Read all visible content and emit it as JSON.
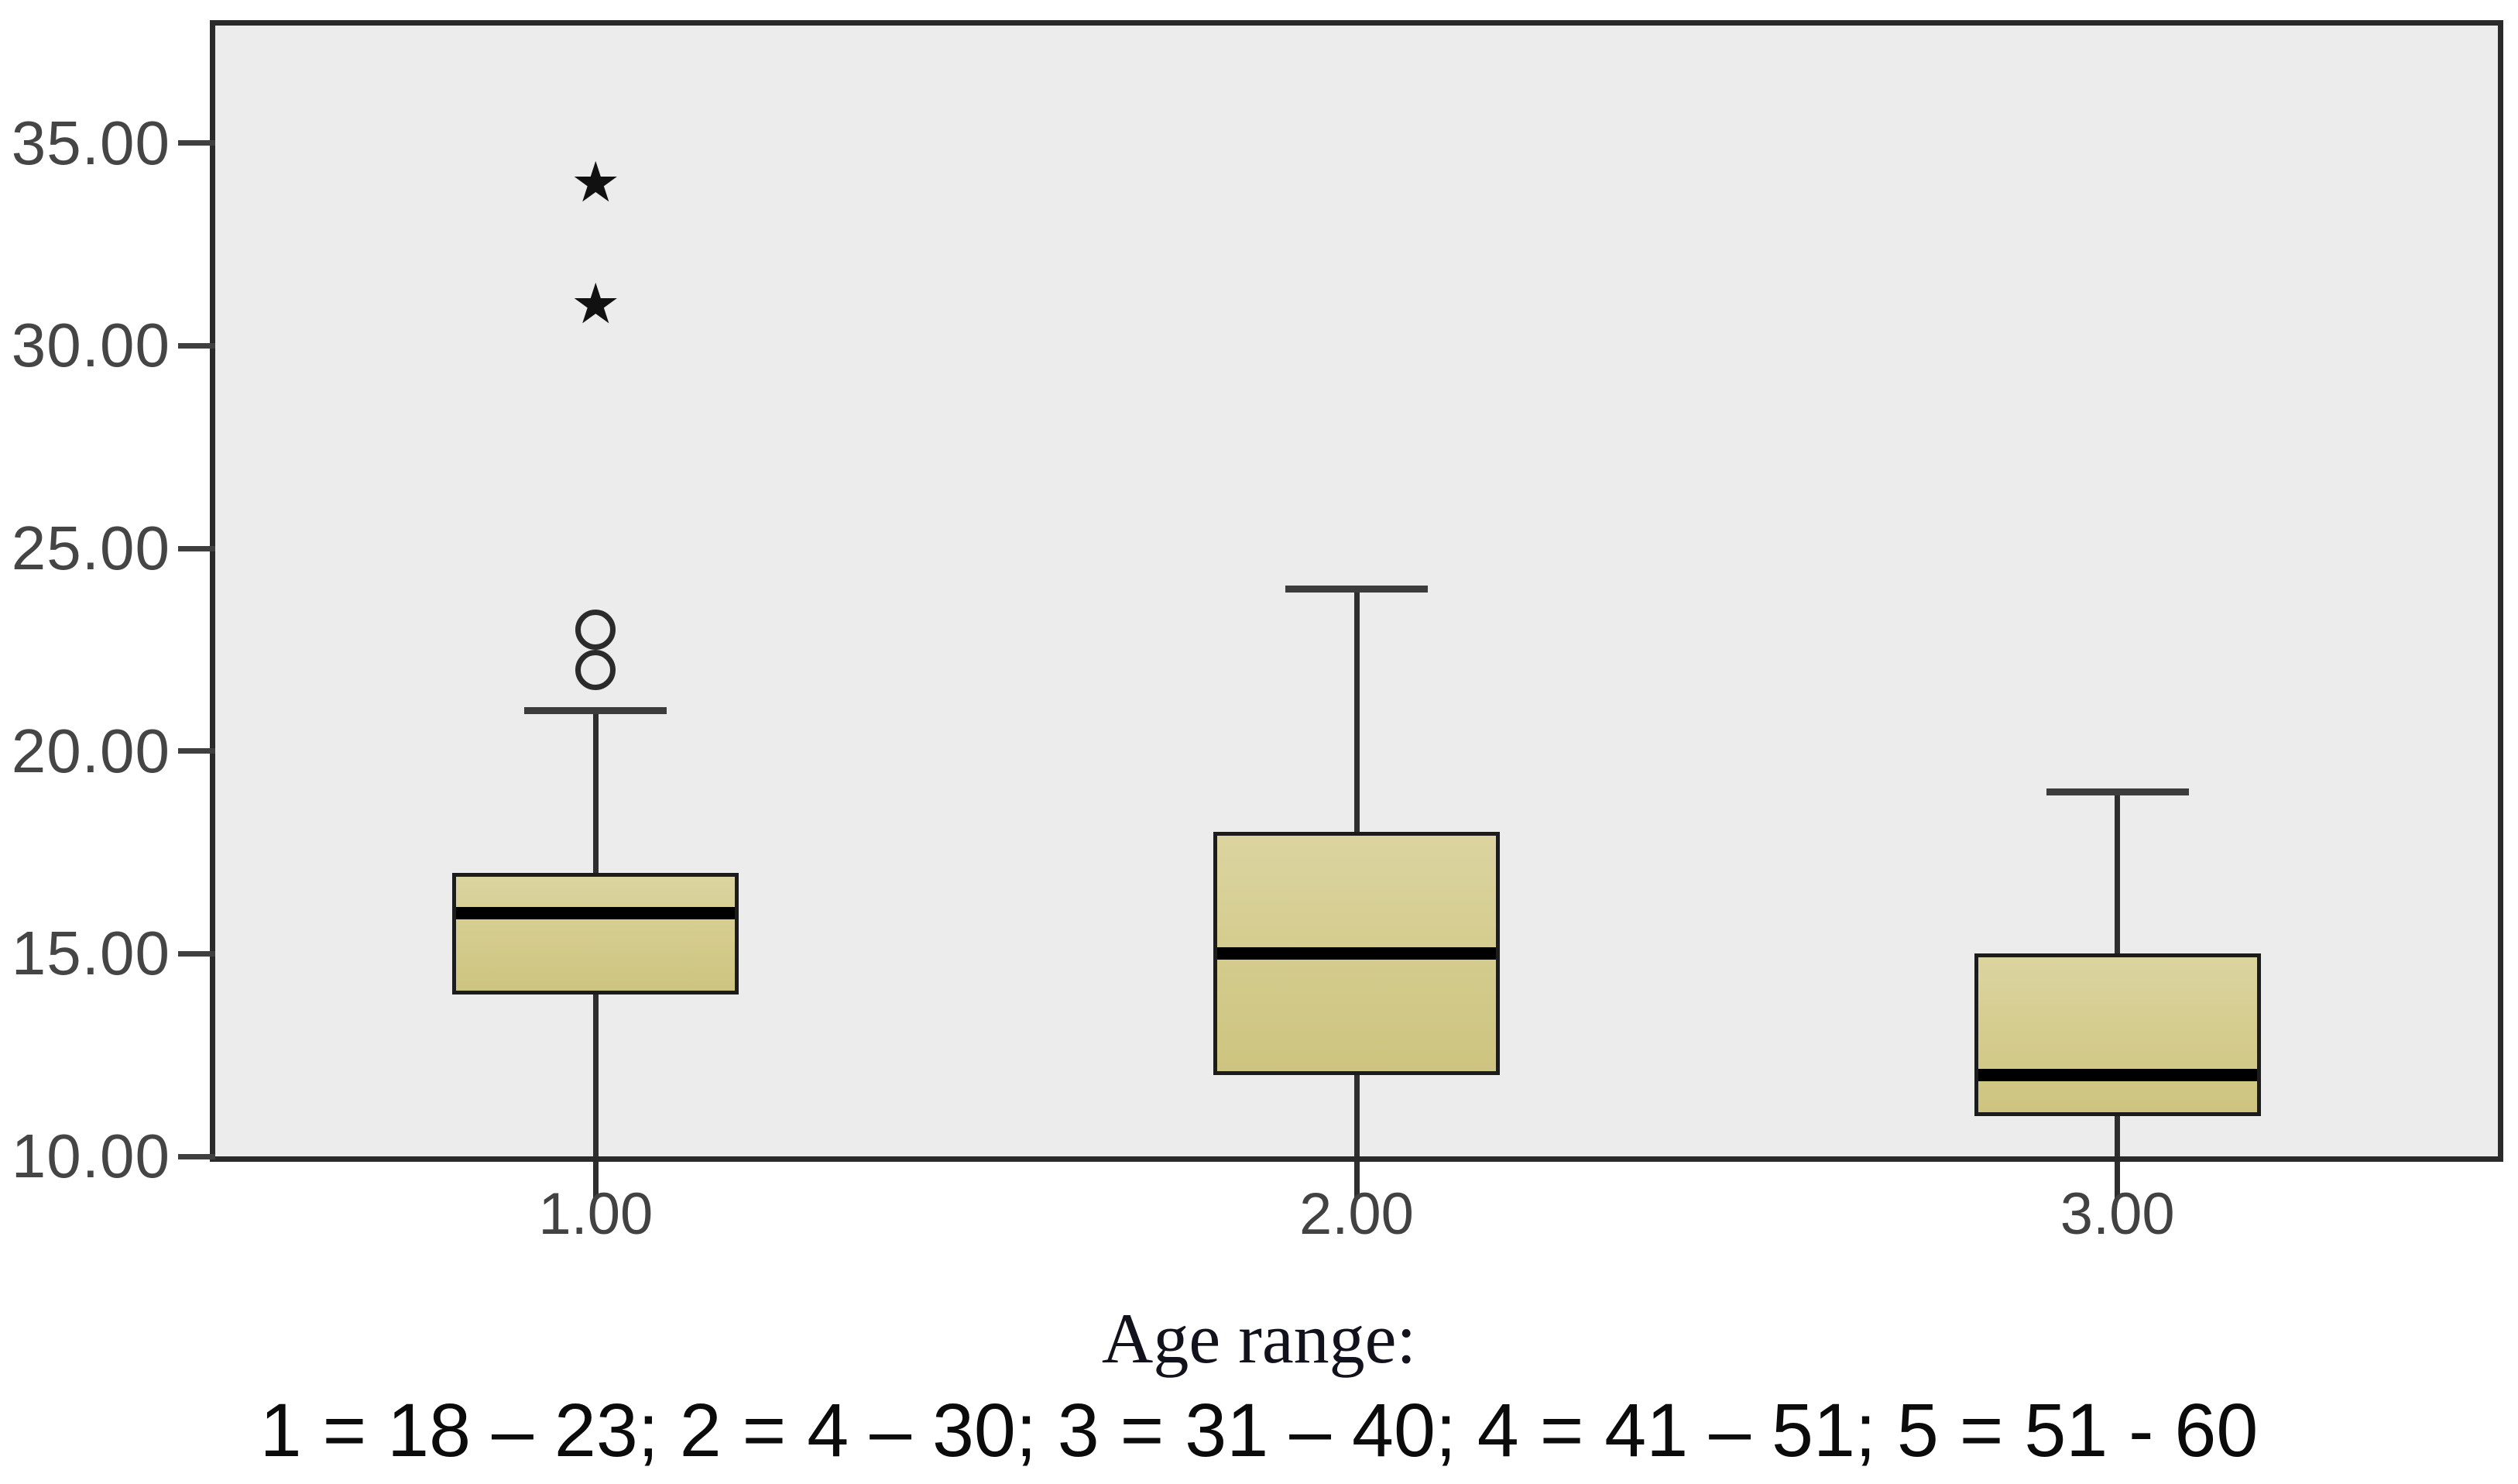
{
  "figure": {
    "caption_title": "Age range:",
    "caption_note": "1 = 18 – 23; 2 = 4 – 30; 3 = 31 – 40; 4 = 41 – 51; 5 = 51 - 60"
  },
  "chart_data": {
    "type": "box",
    "title": "",
    "xlabel": "Age range:",
    "ylabel": "",
    "grid": false,
    "legend_position": "none",
    "ylim": [
      10,
      37.9
    ],
    "categories": [
      "1.00",
      "2.00",
      "3.00"
    ],
    "y_ticks": [
      {
        "value": 35,
        "label": "35.00"
      },
      {
        "value": 30,
        "label": "30.00"
      },
      {
        "value": 25,
        "label": "25.00"
      },
      {
        "value": 20,
        "label": "20.00"
      },
      {
        "value": 15,
        "label": "15.00"
      },
      {
        "value": 10,
        "label": "10.00"
      }
    ],
    "series": [
      {
        "category": "1.00",
        "lower_whisker": 10,
        "q1": 14,
        "median": 16,
        "q3": 17,
        "upper_whisker": 21,
        "outliers_circle": [
          22,
          23
        ],
        "outliers_star": [
          31,
          34
        ],
        "lower_cap": false,
        "upper_cap": true
      },
      {
        "category": "2.00",
        "lower_whisker": 10,
        "q1": 12,
        "median": 15,
        "q3": 18,
        "upper_whisker": 24,
        "outliers_circle": [],
        "outliers_star": [],
        "lower_cap": false,
        "upper_cap": true
      },
      {
        "category": "3.00",
        "lower_whisker": 10,
        "q1": 11,
        "median": 12,
        "q3": 15,
        "upper_whisker": 19,
        "outliers_circle": [],
        "outliers_star": [],
        "lower_cap": false,
        "upper_cap": true
      }
    ],
    "markers": {
      "outlier": "open-circle",
      "extreme": "★"
    },
    "colors": {
      "plot_bg": "#ececec",
      "plot_border": "#2a2a2a",
      "box_fill_light": "#dbd4a0",
      "box_fill": "#d5cd8f",
      "box_fill_dark": "#cdc47f",
      "box_border": "#1c1c1c",
      "median": "#000000",
      "whisker": "#2e2e2e",
      "cap": "#3c3c3c",
      "tick": "#3f3f3f",
      "tick_label": "#454545",
      "outlier_stroke": "#2b2b2b",
      "star": "#111111"
    }
  }
}
